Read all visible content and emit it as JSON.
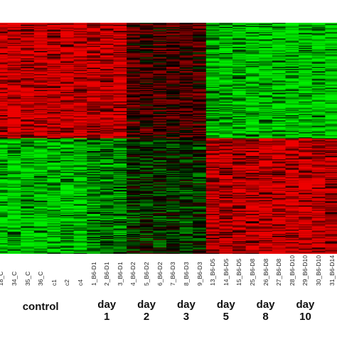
{
  "chart_data": {
    "type": "heatmap",
    "title": "",
    "xlabel": "",
    "ylabel": "",
    "colors": {
      "low": "#00ee00",
      "mid": "#000000",
      "high": "#ee0000"
    },
    "columns": [
      "18_C",
      "34_C",
      "35_C",
      "36_C",
      "c1",
      "c2",
      "c4",
      "1_B6-D1",
      "2_B6-D1",
      "3_B6-D1",
      "4_B6-D2",
      "5_B6-D2",
      "6_B6-D2",
      "7_B6-D3",
      "8_B6-D3",
      "9_B6-D3",
      "13_B6-D5",
      "14_B6-D5",
      "15_B6-D5",
      "25_B6-D8",
      "26_B6-D8",
      "27_B6-D8",
      "28_B6-D10",
      "29_B6-D10",
      "30_B6-D10",
      "31_B6-D14"
    ],
    "row_clusters": [
      {
        "fraction": 0.5,
        "expression": [
          1,
          1,
          1,
          1,
          1,
          1,
          1,
          1,
          1,
          1,
          0.3,
          0.3,
          0.3,
          0.3,
          0.3,
          0.3,
          -0.9,
          -0.9,
          -0.9,
          -1,
          -1,
          -1,
          -1,
          -1,
          -1,
          -1
        ]
      },
      {
        "fraction": 0.5,
        "expression": [
          -1,
          -1,
          -1,
          -1,
          -1,
          -1,
          -1,
          -0.6,
          -0.6,
          -0.6,
          -0.2,
          -0.2,
          -0.2,
          -0.2,
          -0.2,
          -0.2,
          0.9,
          0.9,
          0.9,
          1,
          1,
          1,
          1,
          1,
          1,
          0.8
        ]
      }
    ],
    "groups": [
      {
        "name": "control",
        "line1": "control",
        "line2": "",
        "from": 0,
        "to": 6
      },
      {
        "name": "day 1",
        "line1": "day",
        "line2": "1",
        "from": 7,
        "to": 9
      },
      {
        "name": "day 2",
        "line1": "day",
        "line2": "2",
        "from": 10,
        "to": 12
      },
      {
        "name": "day 3",
        "line1": "day",
        "line2": "3",
        "from": 13,
        "to": 15
      },
      {
        "name": "day 5",
        "line1": "day",
        "line2": "5",
        "from": 16,
        "to": 18
      },
      {
        "name": "day 8",
        "line1": "day",
        "line2": "8",
        "from": 19,
        "to": 21
      },
      {
        "name": "day 10",
        "line1": "day",
        "line2": "10",
        "from": 22,
        "to": 24
      }
    ]
  }
}
